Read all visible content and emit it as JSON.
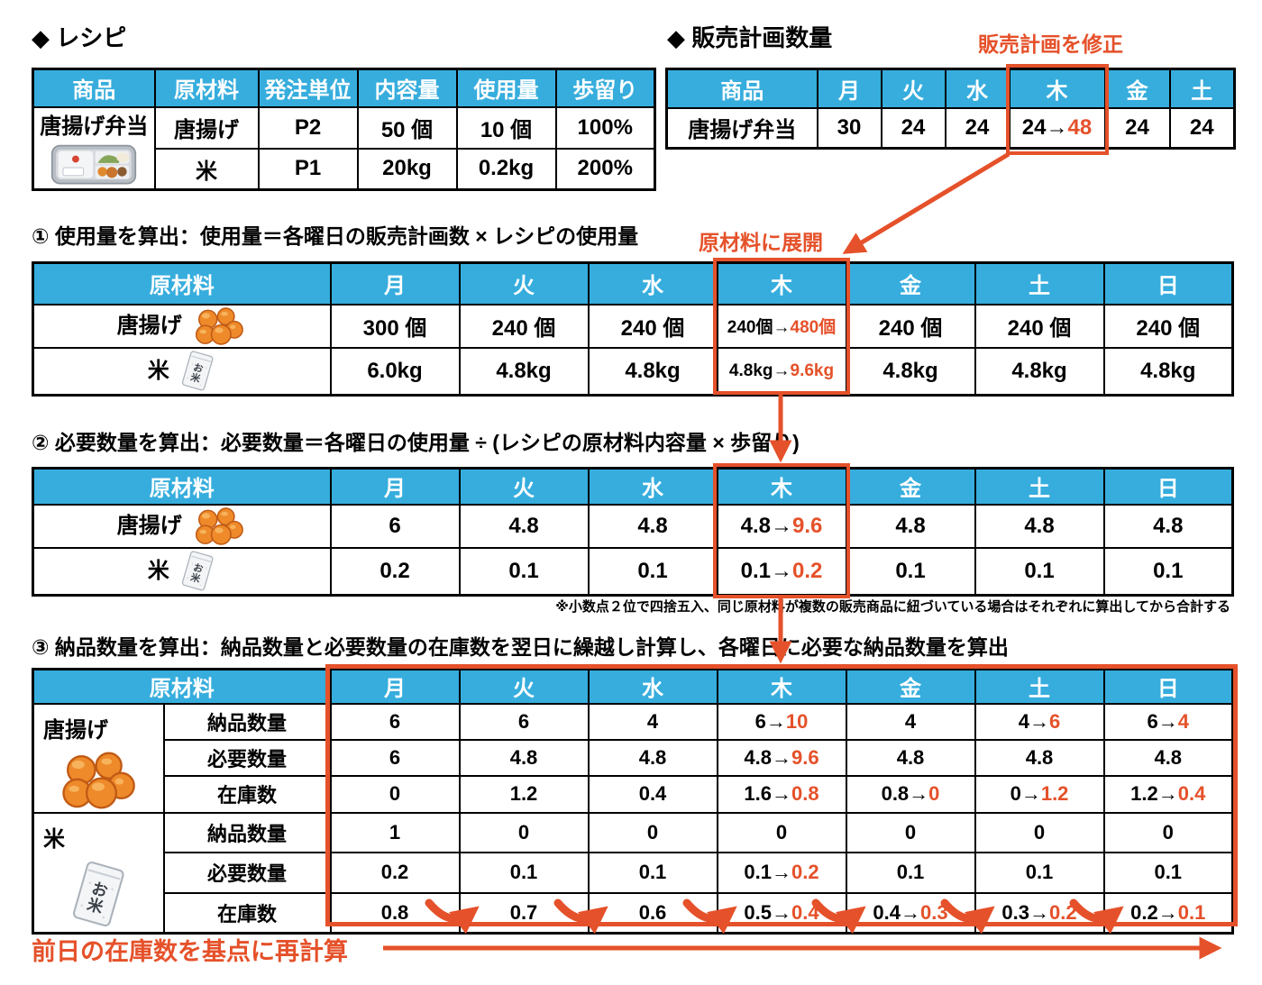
{
  "colors": {
    "header_blue": "#36ADDD",
    "accent_orange": "#E5512A"
  },
  "icons": {
    "product": "bento-box",
    "karaage": "fried-chicken",
    "rice": "rice-bag"
  },
  "recipe": {
    "title": "◆ レシピ",
    "headers": [
      "商品",
      "原材料",
      "発注単位",
      "内容量",
      "使用量",
      "歩留り"
    ],
    "product": "唐揚げ弁当",
    "rows": [
      {
        "material": "唐揚げ",
        "unit": "P2",
        "content": "50 個",
        "usage": "10 個",
        "yield": "100%"
      },
      {
        "material": "米",
        "unit": "P1",
        "content": "20kg",
        "usage": "0.2kg",
        "yield": "200%"
      }
    ]
  },
  "sales_plan": {
    "title": "◆ 販売計画数量",
    "annotation": "販売計画を修正",
    "headers": [
      "商品",
      "月",
      "火",
      "水",
      "木",
      "金",
      "土"
    ],
    "product": "唐揚げ弁当",
    "values": [
      "30",
      "24",
      "24",
      "24→48",
      "24",
      "24"
    ]
  },
  "step1": {
    "title": "① 使用量を算出：使用量＝各曜日の販売計画数 × レシピの使用量",
    "annotation": "原材料に展開",
    "headers": [
      "原材料",
      "月",
      "火",
      "水",
      "木",
      "金",
      "土",
      "日"
    ],
    "rows": [
      {
        "material": "唐揚げ",
        "values": [
          "300 個",
          "240 個",
          "240 個",
          "240個→480個",
          "240 個",
          "240 個",
          "240 個"
        ]
      },
      {
        "material": "米",
        "values": [
          "6.0kg",
          "4.8kg",
          "4.8kg",
          "4.8kg→9.6kg",
          "4.8kg",
          "4.8kg",
          "4.8kg"
        ]
      }
    ]
  },
  "step2": {
    "title": "② 必要数量を算出：必要数量＝各曜日の使用量 ÷ (レシピの原材料内容量 × 歩留り)",
    "headers": [
      "原材料",
      "月",
      "火",
      "水",
      "木",
      "金",
      "土",
      "日"
    ],
    "rows": [
      {
        "material": "唐揚げ",
        "values": [
          "6",
          "4.8",
          "4.8",
          "4.8→9.6",
          "4.8",
          "4.8",
          "4.8"
        ]
      },
      {
        "material": "米",
        "values": [
          "0.2",
          "0.1",
          "0.1",
          "0.1→0.2",
          "0.1",
          "0.1",
          "0.1"
        ]
      }
    ],
    "footnote": "※小数点２位で四捨五入、同じ原材料が複数の販売商品に紐づいている場合はそれぞれに算出してから合計する"
  },
  "step3": {
    "title": "③ 納品数量を算出：納品数量と必要数量の在庫数を翌日に繰越し計算し、各曜日に必要な納品数量を算出",
    "headers": [
      "原材料",
      "月",
      "火",
      "水",
      "木",
      "金",
      "土",
      "日"
    ],
    "materials": [
      "唐揚げ",
      "米"
    ],
    "rows": [
      {
        "label": "納品数量",
        "values": [
          "6",
          "6",
          "4",
          "6→10",
          "4",
          "4→6",
          "6→4"
        ]
      },
      {
        "label": "必要数量",
        "values": [
          "6",
          "4.8",
          "4.8",
          "4.8→9.6",
          "4.8",
          "4.8",
          "4.8"
        ]
      },
      {
        "label": "在庫数",
        "values": [
          "0",
          "1.2",
          "0.4",
          "1.6→0.8",
          "0.8→0",
          "0→1.2",
          "1.2→0.4"
        ]
      },
      {
        "label": "納品数量",
        "values": [
          "1",
          "0",
          "0",
          "0",
          "0",
          "0",
          "0"
        ]
      },
      {
        "label": "必要数量",
        "values": [
          "0.2",
          "0.1",
          "0.1",
          "0.1→0.2",
          "0.1",
          "0.1",
          "0.1"
        ]
      },
      {
        "label": "在庫数",
        "values": [
          "0.8",
          "0.7",
          "0.6",
          "0.5→0.4",
          "0.4→0.3",
          "0.3→0.2",
          "0.2→0.1"
        ]
      }
    ]
  },
  "footer": {
    "label": "前日の在庫数を基点に再計算"
  }
}
